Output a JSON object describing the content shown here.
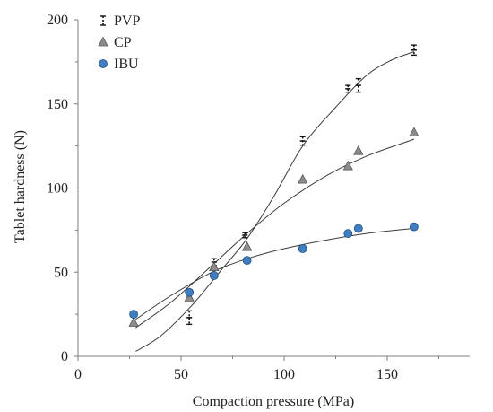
{
  "chart_data": {
    "type": "scatter",
    "title": "",
    "xlabel": "Compaction pressure (MPa)",
    "ylabel": "Tablet hardness (N)",
    "xlim": [
      0,
      190
    ],
    "ylim": [
      0,
      200
    ],
    "xticks": [
      0,
      50,
      100,
      150
    ],
    "yticks": [
      0,
      50,
      100,
      150,
      200
    ],
    "legend_position": "top-left",
    "grid": false,
    "series": [
      {
        "name": "PVP",
        "marker": "errorbar-dash",
        "color": "#111111",
        "points": [
          {
            "x": 54,
            "y": 23,
            "err": 4
          },
          {
            "x": 66,
            "y": 56,
            "err": 2
          },
          {
            "x": 81,
            "y": 72,
            "err": 1.5
          },
          {
            "x": 109,
            "y": 128,
            "err": 2.5
          },
          {
            "x": 131,
            "y": 159,
            "err": 2
          },
          {
            "x": 136,
            "y": 161,
            "err": 4
          },
          {
            "x": 163,
            "y": 182,
            "err": 3
          }
        ],
        "trend": [
          [
            28,
            3
          ],
          [
            40,
            12
          ],
          [
            55,
            30
          ],
          [
            70,
            52
          ],
          [
            82,
            70
          ],
          [
            95,
            95
          ],
          [
            109,
            125
          ],
          [
            125,
            148
          ],
          [
            140,
            167
          ],
          [
            152,
            176
          ],
          [
            163,
            181
          ]
        ]
      },
      {
        "name": "CP",
        "marker": "triangle",
        "color": "#8c8c8c",
        "points": [
          {
            "x": 27,
            "y": 20
          },
          {
            "x": 54,
            "y": 35
          },
          {
            "x": 66,
            "y": 53
          },
          {
            "x": 82,
            "y": 65
          },
          {
            "x": 109,
            "y": 105
          },
          {
            "x": 131,
            "y": 113
          },
          {
            "x": 136,
            "y": 122
          },
          {
            "x": 163,
            "y": 133
          }
        ],
        "trend": [
          [
            28,
            17
          ],
          [
            45,
            32
          ],
          [
            65,
            54
          ],
          [
            82,
            73
          ],
          [
            100,
            91
          ],
          [
            120,
            107
          ],
          [
            140,
            119
          ],
          [
            163,
            129
          ]
        ]
      },
      {
        "name": "IBU",
        "marker": "circle",
        "color": "#3f7fc1",
        "points": [
          {
            "x": 27,
            "y": 25
          },
          {
            "x": 54,
            "y": 38
          },
          {
            "x": 66,
            "y": 48
          },
          {
            "x": 82,
            "y": 57
          },
          {
            "x": 109,
            "y": 64
          },
          {
            "x": 131,
            "y": 73
          },
          {
            "x": 136,
            "y": 76
          },
          {
            "x": 163,
            "y": 77
          }
        ],
        "trend": [
          [
            28,
            22
          ],
          [
            45,
            36
          ],
          [
            65,
            50
          ],
          [
            82,
            58
          ],
          [
            100,
            64
          ],
          [
            120,
            69
          ],
          [
            140,
            73
          ],
          [
            163,
            76
          ]
        ]
      }
    ]
  }
}
